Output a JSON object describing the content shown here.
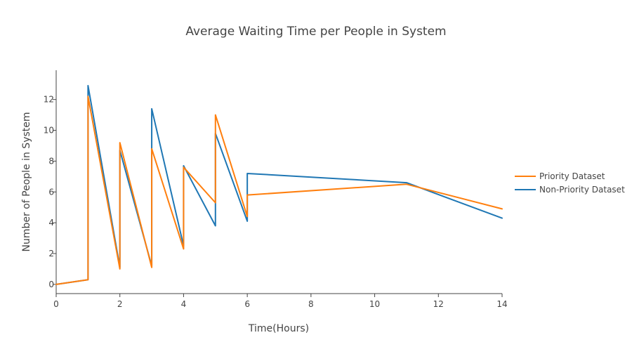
{
  "chart_data": {
    "type": "line",
    "title": "Average Waiting Time per People in System",
    "xlabel": "Time(Hours)",
    "ylabel": "Number of People in System",
    "xlim": [
      0,
      14
    ],
    "ylim": [
      -0.6,
      13.9
    ],
    "xticks": [
      0,
      2,
      4,
      6,
      8,
      10,
      12,
      14
    ],
    "yticks": [
      0,
      2,
      4,
      6,
      8,
      10,
      12
    ],
    "grid": false,
    "legend_position": "right",
    "series": [
      {
        "name": "Priority Dataset",
        "color": "#ff7f0e",
        "x": [
          0,
          1,
          1,
          2,
          2,
          3,
          3,
          4,
          4,
          5,
          5,
          6,
          6,
          11,
          14
        ],
        "y": [
          0,
          0.3,
          12.2,
          1.0,
          9.2,
          1.1,
          8.8,
          2.3,
          7.6,
          5.3,
          11.0,
          4.4,
          5.8,
          6.5,
          4.9
        ]
      },
      {
        "name": "Non-Priority Dataset",
        "color": "#1f77b4",
        "x": [
          0,
          1,
          1,
          2,
          2,
          3,
          3,
          4,
          4,
          5,
          5,
          6,
          6,
          11,
          14
        ],
        "y": [
          0,
          0.3,
          12.9,
          1.1,
          8.7,
          1.2,
          11.4,
          2.5,
          7.7,
          3.8,
          9.8,
          4.1,
          7.2,
          6.6,
          4.3
        ]
      }
    ]
  }
}
